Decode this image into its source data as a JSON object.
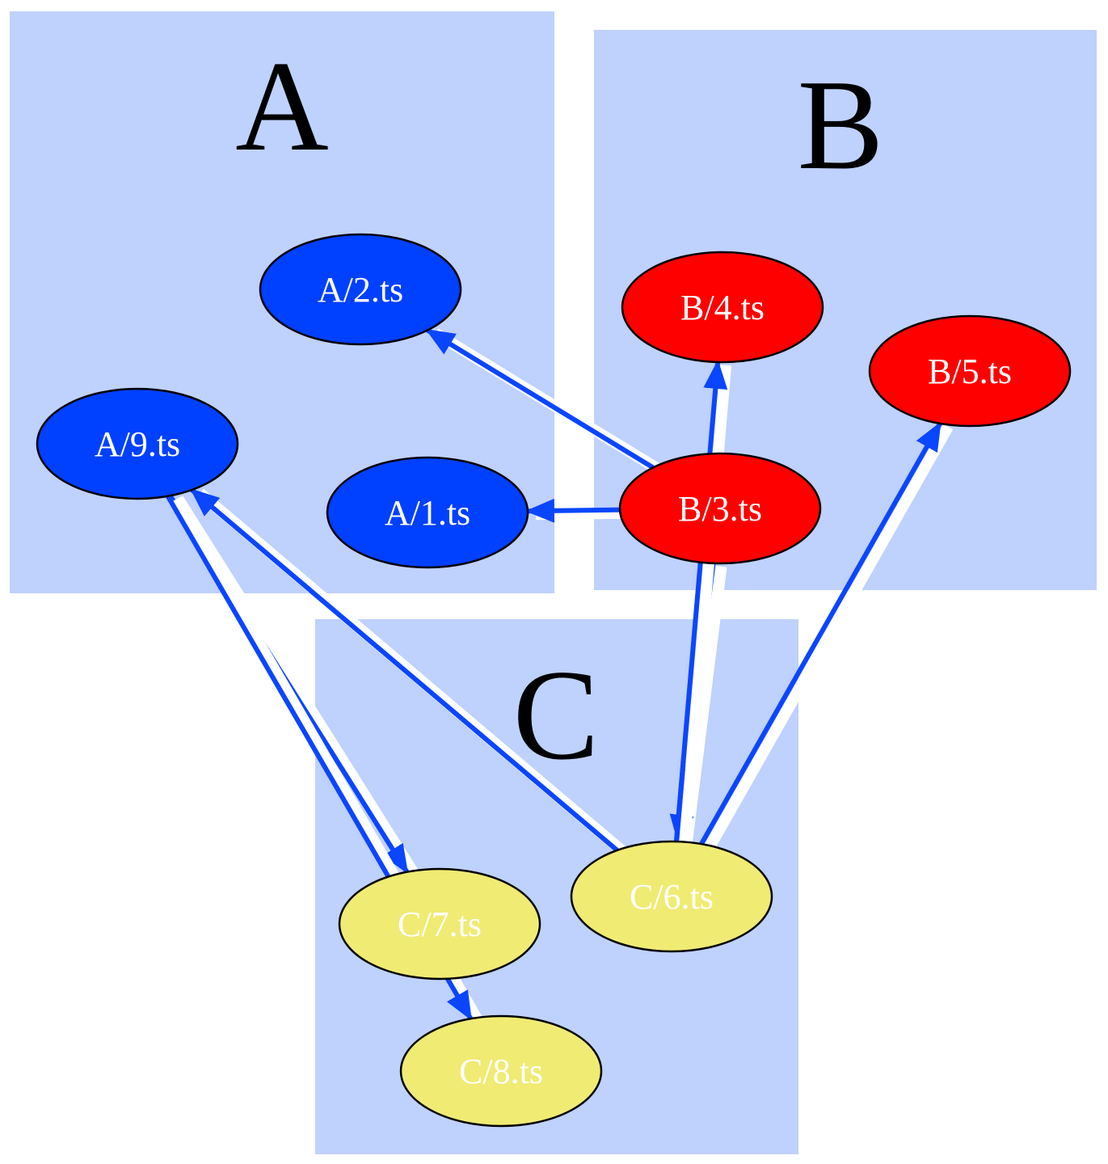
{
  "diagram": {
    "clusters": [
      {
        "id": "A",
        "label": "A"
      },
      {
        "id": "B",
        "label": "B"
      },
      {
        "id": "C",
        "label": "C"
      }
    ],
    "nodes": [
      {
        "id": "A/2",
        "label": "A/2.ts",
        "cluster": "A",
        "fill": "#0040ff"
      },
      {
        "id": "A/9",
        "label": "A/9.ts",
        "cluster": "A",
        "fill": "#0040ff"
      },
      {
        "id": "A/1",
        "label": "A/1.ts",
        "cluster": "A",
        "fill": "#0040ff"
      },
      {
        "id": "B/4",
        "label": "B/4.ts",
        "cluster": "B",
        "fill": "#ff0000"
      },
      {
        "id": "B/5",
        "label": "B/5.ts",
        "cluster": "B",
        "fill": "#ff0000"
      },
      {
        "id": "B/3",
        "label": "B/3.ts",
        "cluster": "B",
        "fill": "#ff0000"
      },
      {
        "id": "C/6",
        "label": "C/6.ts",
        "cluster": "C",
        "fill": "#f0eb73"
      },
      {
        "id": "C/7",
        "label": "C/7.ts",
        "cluster": "C",
        "fill": "#f0eb73"
      },
      {
        "id": "C/8",
        "label": "C/8.ts",
        "cluster": "C",
        "fill": "#f0eb73"
      }
    ],
    "edges": [
      {
        "from": "B/3",
        "to": "A/2"
      },
      {
        "from": "B/3",
        "to": "A/1"
      },
      {
        "from": "B/3",
        "to": "C/6"
      },
      {
        "from": "C/6",
        "to": "B/4"
      },
      {
        "from": "C/6",
        "to": "B/5"
      },
      {
        "from": "C/6",
        "to": "A/9"
      },
      {
        "from": "A/9",
        "to": "C/7"
      },
      {
        "from": "A/9",
        "to": "C/8"
      }
    ],
    "colors": {
      "cluster_fill": "#bfd1fd",
      "edge": "#0a46ff",
      "edge_halo": "#ffffff",
      "node_stroke": "#000000",
      "label": "#ffffff"
    }
  }
}
